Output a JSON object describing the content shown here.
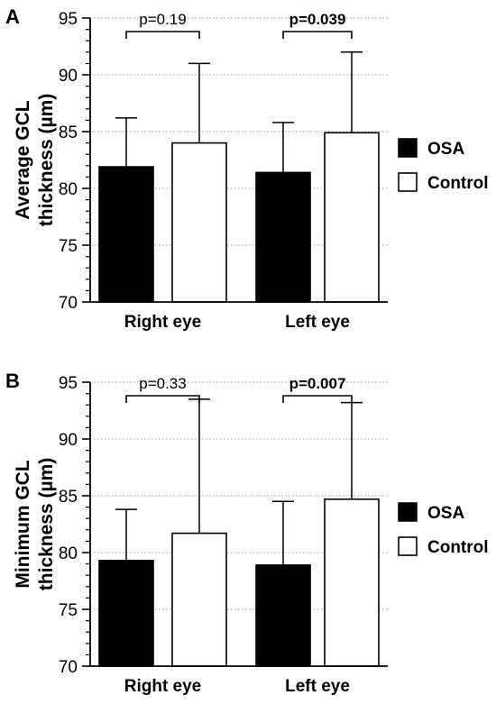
{
  "chart_data": [
    {
      "panel_label": "A",
      "type": "bar",
      "ylabel_line1": "Average GCL",
      "ylabel_line2": "thickness (µm)",
      "ylim": [
        70,
        95
      ],
      "yticks": [
        70,
        75,
        80,
        85,
        90,
        95
      ],
      "grid": "horizontal dotted",
      "categories": [
        "Right eye",
        "Left eye"
      ],
      "series": [
        {
          "name": "OSA",
          "color": "#000000",
          "values": [
            81.9,
            81.4
          ],
          "error_upper": [
            86.2,
            85.8
          ]
        },
        {
          "name": "Control",
          "color": "#ffffff",
          "values": [
            84.0,
            84.9
          ],
          "error_upper": [
            91.0,
            92.0
          ]
        }
      ],
      "annotations": [
        {
          "text": "p=0.19",
          "bold": false
        },
        {
          "text": "p=0.039",
          "bold": true
        }
      ],
      "legend_position": "right"
    },
    {
      "panel_label": "B",
      "type": "bar",
      "ylabel_line1": "Minimum GCL",
      "ylabel_line2": "thickness (µm)",
      "ylim": [
        70,
        95
      ],
      "yticks": [
        70,
        75,
        80,
        85,
        90,
        95
      ],
      "grid": "horizontal dotted",
      "categories": [
        "Right eye",
        "Left eye"
      ],
      "series": [
        {
          "name": "OSA",
          "color": "#000000",
          "values": [
            79.3,
            78.9
          ],
          "error_upper": [
            83.8,
            84.5
          ]
        },
        {
          "name": "Control",
          "color": "#ffffff",
          "values": [
            81.7,
            84.7
          ],
          "error_upper": [
            93.5,
            93.2
          ]
        }
      ],
      "annotations": [
        {
          "text": "p=0.33",
          "bold": false
        },
        {
          "text": "p=0.007",
          "bold": true
        }
      ],
      "legend_position": "right"
    }
  ]
}
